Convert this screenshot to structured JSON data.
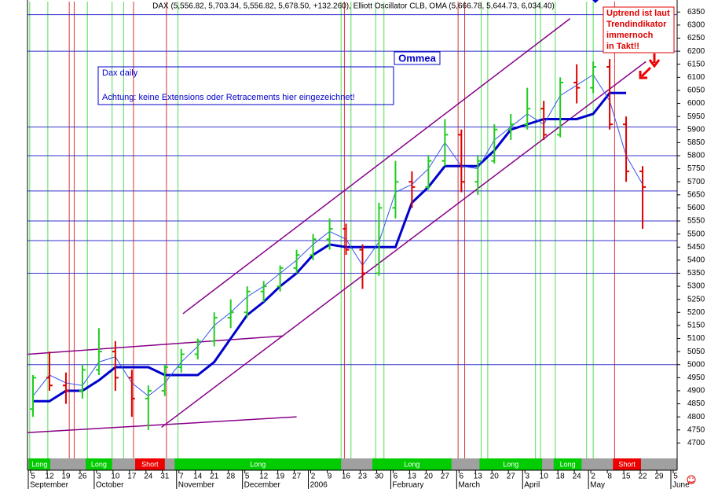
{
  "chart_data": {
    "type": "ohlc",
    "title": "DAX (5,556.82, 5,703.34, 5,556.82, 5,678.50, +132.260), Elliott Oscillator CLB, OMA (5,666.78, 5,644.73, 6,034.40)",
    "categories": [
      "5",
      "12",
      "19",
      "26",
      "3",
      "10",
      "17",
      "24",
      "31",
      "7",
      "14",
      "21",
      "28",
      "5",
      "12",
      "19",
      "27",
      "2",
      "9",
      "16",
      "23",
      "30",
      "6",
      "13",
      "20",
      "27",
      "6",
      "13",
      "20",
      "27",
      "3",
      "10",
      "18",
      "24",
      "2",
      "8",
      "15",
      "22",
      "29",
      "5"
    ],
    "months": [
      "September",
      "October",
      "November",
      "December",
      "2006",
      "February",
      "March",
      "April",
      "May",
      "June"
    ],
    "open": [
      4830,
      4950,
      4920,
      4900,
      4980,
      5050,
      4950,
      4870,
      4900,
      4990,
      5040,
      5090,
      5180,
      5200,
      5280,
      5300,
      5370,
      5420,
      5480,
      5520,
      5440,
      5350,
      5600,
      5700,
      5680,
      5780,
      5880,
      5700,
      5780,
      5900,
      5920,
      5980,
      5880,
      6080,
      6060,
      6140,
      5920,
      5740,
      null,
      null
    ],
    "high": [
      4960,
      5050,
      4970,
      5000,
      5140,
      5090,
      4980,
      4920,
      5000,
      5060,
      5100,
      5200,
      5250,
      5300,
      5320,
      5380,
      5440,
      5500,
      5560,
      5540,
      5460,
      5620,
      5780,
      5740,
      5800,
      5940,
      5900,
      5800,
      5920,
      5960,
      6060,
      6010,
      6100,
      6150,
      6160,
      6170,
      5950,
      5760,
      null,
      null
    ],
    "low": [
      4800,
      4900,
      4850,
      4870,
      4960,
      4900,
      4800,
      4750,
      4880,
      4970,
      5020,
      5070,
      5140,
      5180,
      5240,
      5280,
      5350,
      5400,
      5440,
      5420,
      5290,
      5340,
      5560,
      5600,
      5670,
      5760,
      5660,
      5650,
      5770,
      5860,
      5900,
      5860,
      5870,
      6000,
      6040,
      5900,
      5700,
      5520,
      null,
      null
    ],
    "close": [
      4950,
      4920,
      4900,
      4980,
      5050,
      4950,
      4870,
      4900,
      4990,
      5040,
      5090,
      5180,
      5200,
      5280,
      5300,
      5370,
      5420,
      5480,
      5520,
      5440,
      5350,
      5600,
      5700,
      5680,
      5780,
      5880,
      5700,
      5780,
      5900,
      5920,
      5980,
      5880,
      6080,
      6060,
      6140,
      5920,
      5740,
      5680,
      null,
      null
    ],
    "up_color": "#22cc22",
    "down_color": "#dd0000",
    "indicator_lines": [
      {
        "color": "#0000cc",
        "width": 3,
        "values": [
          4860,
          4860,
          4900,
          4900,
          4940,
          4990,
          4990,
          4990,
          4960,
          4960,
          4960,
          5010,
          5100,
          5190,
          5240,
          5300,
          5350,
          5420,
          5460,
          5450,
          5450,
          5450,
          5450,
          5620,
          5680,
          5760,
          5760,
          5760,
          5820,
          5900,
          5920,
          5940,
          5940,
          5940,
          5960,
          6040,
          6040,
          null,
          null,
          null
        ]
      },
      {
        "color": "#3355ee",
        "width": 1,
        "values": [
          4880,
          4960,
          4930,
          4920,
          5010,
          5030,
          4930,
          4880,
          4930,
          5010,
          5070,
          5150,
          5200,
          5260,
          5300,
          5350,
          5400,
          5460,
          5510,
          5480,
          5380,
          5470,
          5660,
          5690,
          5750,
          5850,
          5760,
          5750,
          5860,
          5910,
          5960,
          5920,
          6030,
          6070,
          6110,
          6010,
          5800,
          5690,
          null,
          null
        ]
      }
    ],
    "hlines": [
      6340,
      6200,
      5910,
      5800,
      5665,
      5550,
      5475,
      5350,
      5000
    ],
    "hline_color": "#3333cc",
    "trendlines": [
      {
        "color": "#880088",
        "start": [
          9.1,
          5195
        ],
        "end": [
          32.6,
          6325
        ]
      },
      {
        "color": "#880088",
        "start": [
          7.8,
          4760
        ],
        "end": [
          37.2,
          6160
        ]
      },
      {
        "color": "#880088",
        "start": [
          -0.3,
          4740
        ],
        "end": [
          16.0,
          4800
        ]
      },
      {
        "color": "#880088",
        "start": [
          -0.3,
          5040
        ],
        "end": [
          15.2,
          5110
        ]
      }
    ],
    "signal_lines": [
      {
        "color": "#55dd55",
        "x": [
          -0.2,
          0.9,
          3.3,
          4.8,
          5.5,
          8.8,
          18.7,
          19.3,
          20.8,
          21.3,
          27.2,
          27.6,
          30.5,
          30.8,
          31.7,
          33.6,
          34.0
        ]
      },
      {
        "color": "#dd3333",
        "x": [
          2.2,
          2.5,
          6.1,
          8.1,
          18.9,
          25.8,
          26.2,
          35.3
        ]
      }
    ],
    "regimes": [
      {
        "label": "Long",
        "start": -0.25,
        "end": 1.05,
        "color": "#00cc00"
      },
      {
        "label": "Long",
        "start": 3.2,
        "end": 4.8,
        "color": "#00cc00"
      },
      {
        "label": "Short",
        "start": 6.2,
        "end": 8.0,
        "color": "#ee0000"
      },
      {
        "label": "Long",
        "start": 8.6,
        "end": 18.7,
        "color": "#00cc00"
      },
      {
        "label": "Long",
        "start": 20.6,
        "end": 25.4,
        "color": "#00cc00"
      },
      {
        "label": "Long",
        "start": 27.1,
        "end": 30.9,
        "color": "#00cc00"
      },
      {
        "label": "Long",
        "start": 31.6,
        "end": 33.3,
        "color": "#00cc00"
      },
      {
        "label": "Short",
        "start": 35.2,
        "end": 36.9,
        "color": "#ee0000"
      }
    ],
    "ylim": [
      4650,
      6390
    ],
    "yticks": [
      4700,
      4750,
      4800,
      4850,
      4900,
      4950,
      5000,
      5050,
      5100,
      5150,
      5200,
      5250,
      5300,
      5350,
      5400,
      5450,
      5500,
      5550,
      5600,
      5650,
      5700,
      5750,
      5800,
      5850,
      5900,
      5950,
      6000,
      6050,
      6100,
      6150,
      6200,
      6250,
      6300,
      6350
    ],
    "annotations": {
      "info_box": [
        "Dax daily",
        "Achtung: keine Extensions oder Retracements hier eingezeichnet!"
      ],
      "label": "Ommea",
      "trend_note": [
        "Uptrend ist laut",
        "Trendindikator",
        "immernoch",
        "in Takt!!"
      ]
    }
  }
}
